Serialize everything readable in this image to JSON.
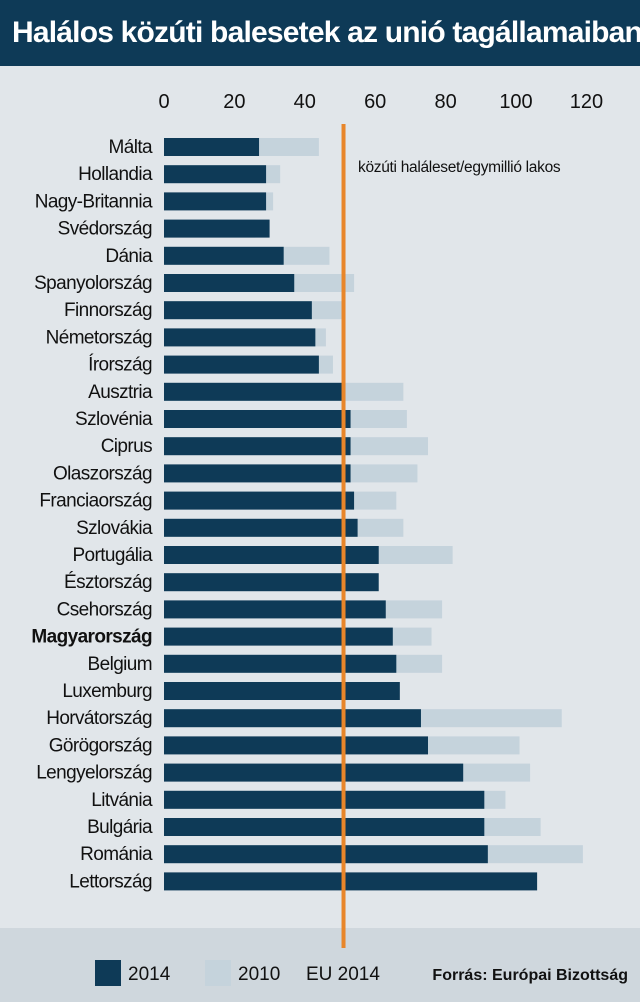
{
  "title": "Halálos közúti balesetek az unió tagállamaiban",
  "colors": {
    "bar_2014": "#0e3a57",
    "bar_2010": "#c5d3dc",
    "eu_line": "#e8862a",
    "title_bg": "#0e3a57",
    "background": "#e1e6ea"
  },
  "chart_data": {
    "type": "bar",
    "orientation": "horizontal",
    "title": "Halálos közúti balesetek az unió tagállamaiban",
    "unit_label": "közúti haláleset/egymillió lakos",
    "x_ticks": [
      0,
      20,
      40,
      60,
      80,
      100,
      120
    ],
    "xlim": [
      0,
      120
    ],
    "categories": [
      "Málta",
      "Hollandia",
      "Nagy-Britannia",
      "Svédország",
      "Dánia",
      "Spanyolország",
      "Finnország",
      "Németország",
      "Írország",
      "Ausztria",
      "Szlovénia",
      "Ciprus",
      "Olaszország",
      "Franciaország",
      "Szlovákia",
      "Portugália",
      "Észtország",
      "Csehország",
      "Magyarország",
      "Belgium",
      "Luxemburg",
      "Horvátország",
      "Görögország",
      "Lengyelország",
      "Litvánia",
      "Bulgária",
      "Románia",
      "Lettország"
    ],
    "highlight": "Magyarország",
    "series": [
      {
        "name": "2014",
        "values": [
          27,
          29,
          29,
          30,
          34,
          37,
          42,
          43,
          44,
          51,
          53,
          53,
          53,
          54,
          55,
          61,
          61,
          63,
          65,
          66,
          67,
          73,
          75,
          85,
          91,
          91,
          92,
          106
        ]
      },
      {
        "name": "2010",
        "values": [
          44,
          33,
          31,
          26,
          47,
          54,
          51,
          46,
          48,
          68,
          69,
          75,
          72,
          66,
          68,
          82,
          59,
          79,
          76,
          79,
          66,
          113,
          101,
          104,
          97,
          107,
          119,
          104
        ]
      }
    ],
    "reference_line": {
      "label": "EU 2014",
      "value": 51
    },
    "legend": {
      "placement": "bottom",
      "items": [
        "2014",
        "2010",
        "EU 2014"
      ]
    },
    "source": "Forrás: Európai Bizottság"
  }
}
